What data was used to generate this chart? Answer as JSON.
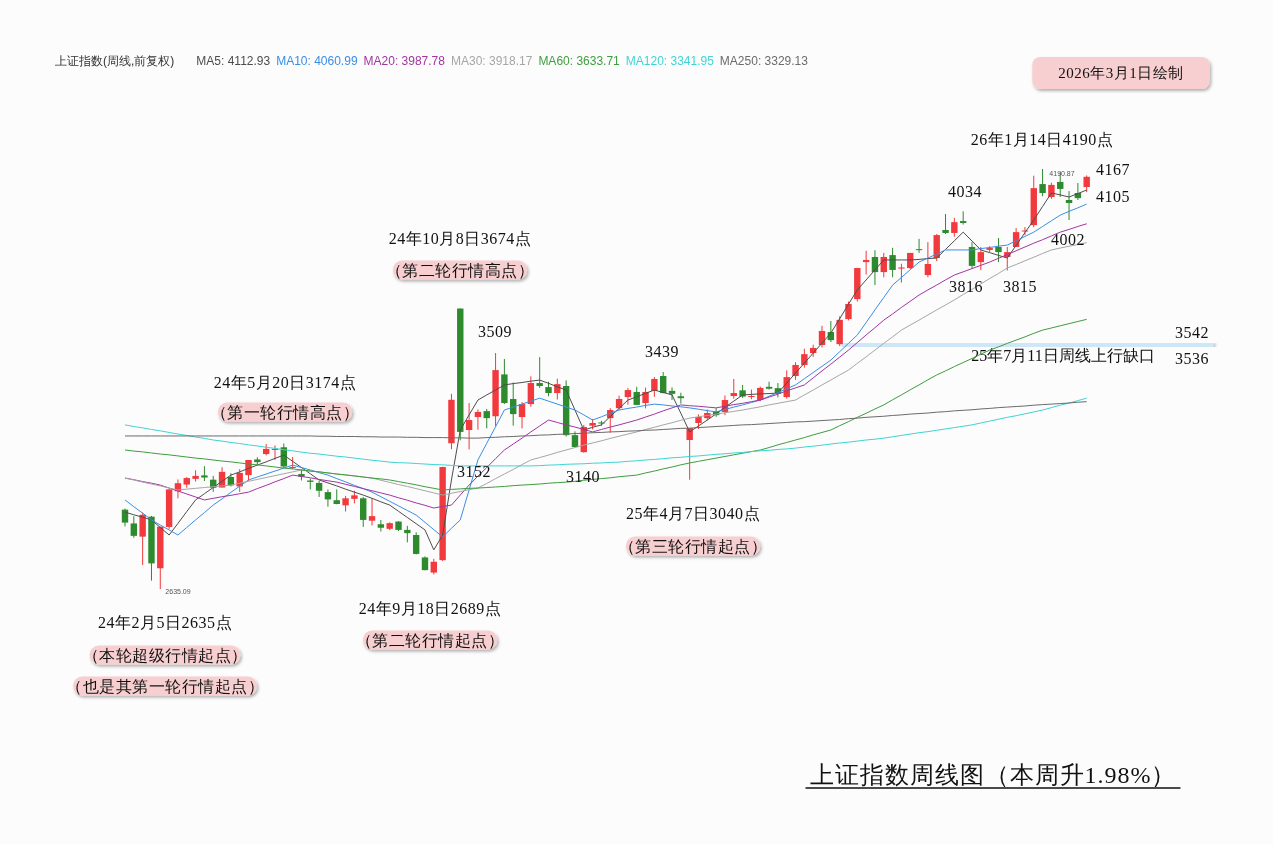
{
  "chart_data": {
    "type": "candlestick",
    "title": "上证指数周线图（本周升1.98%）",
    "legend_title": "上证指数(周线,前复权)",
    "legend": "top",
    "categories": [
      null,
      null,
      null,
      null,
      null,
      null,
      null,
      null,
      null,
      null,
      null,
      null,
      null,
      null,
      null,
      null,
      null,
      null,
      null,
      null,
      null,
      null,
      null,
      null,
      null,
      null,
      null,
      null,
      null,
      null,
      null,
      null,
      null,
      null,
      null,
      null,
      null,
      null,
      null,
      null,
      null,
      null,
      null,
      null,
      null,
      null,
      null,
      null,
      null,
      null,
      null,
      null,
      null,
      null,
      null,
      null,
      null,
      null,
      null,
      null,
      null,
      null,
      null,
      null,
      null,
      null,
      null,
      null,
      null,
      null,
      null,
      null,
      null,
      null,
      null,
      null,
      null,
      null,
      null,
      null,
      null,
      null,
      null,
      null,
      null,
      null,
      null,
      null,
      null,
      null,
      null,
      null,
      null,
      null,
      null,
      null,
      null,
      null,
      null,
      null,
      null,
      null,
      null,
      null,
      null,
      null,
      null,
      null,
      null,
      null
    ],
    "ohlc": [
      [
        2929,
        2933,
        2867,
        2881
      ],
      [
        2878,
        2905,
        2825,
        2832
      ],
      [
        2829,
        2918,
        2724,
        2910
      ],
      [
        2903,
        2906,
        2666,
        2730
      ],
      [
        2712,
        2866,
        2635.09,
        2866
      ],
      [
        2865,
        3004,
        2858,
        3004
      ],
      [
        2997,
        3041,
        2971,
        3027
      ],
      [
        3022,
        3050,
        3010,
        3046
      ],
      [
        3043,
        3075,
        3033,
        3054
      ],
      [
        3056,
        3090,
        3035,
        3048
      ],
      [
        3040,
        3054,
        2995,
        3010
      ],
      [
        3011,
        3086,
        3011,
        3069
      ],
      [
        3050,
        3064,
        3015,
        3019
      ],
      [
        3015,
        3079,
        2995,
        3065
      ],
      [
        3057,
        3113,
        3036,
        3113
      ],
      [
        3115,
        3123,
        3095,
        3105
      ],
      [
        3135,
        3172,
        3130,
        3154
      ],
      [
        3150,
        3167,
        3113,
        3154
      ],
      [
        3160,
        3174,
        3084,
        3089
      ],
      [
        3086,
        3124,
        3079,
        3087
      ],
      [
        3061,
        3078,
        3037,
        3051
      ],
      [
        3037,
        3044,
        3004,
        3032
      ],
      [
        3028,
        3036,
        2976,
        2999
      ],
      [
        2994,
        3004,
        2940,
        2967
      ],
      [
        2964,
        3004,
        2949,
        2950
      ],
      [
        2945,
        2980,
        2922,
        2971
      ],
      [
        2969,
        2999,
        2952,
        2982
      ],
      [
        2971,
        2976,
        2865,
        2891
      ],
      [
        2888,
        2971,
        2870,
        2905
      ],
      [
        2875,
        2891,
        2848,
        2862
      ],
      [
        2858,
        2882,
        2853,
        2879
      ],
      [
        2885,
        2886,
        2850,
        2854
      ],
      [
        2854,
        2869,
        2808,
        2842
      ],
      [
        2835,
        2845,
        2763,
        2765
      ],
      [
        2752,
        2756,
        2704,
        2705
      ],
      [
        2696,
        2747,
        2689,
        2736
      ],
      [
        2742,
        3088,
        2739,
        3087
      ],
      [
        3175,
        3358,
        3153,
        3336
      ],
      [
        3674,
        3674,
        3186,
        3217
      ],
      [
        3224,
        3324,
        3152,
        3261
      ],
      [
        3272,
        3300,
        3225,
        3291
      ],
      [
        3294,
        3302,
        3230,
        3268
      ],
      [
        3275,
        3509,
        3238,
        3446
      ],
      [
        3430,
        3487,
        3320,
        3324
      ],
      [
        3339,
        3400,
        3240,
        3283
      ],
      [
        3272,
        3327,
        3230,
        3320
      ],
      [
        3320,
        3423,
        3310,
        3398
      ],
      [
        3398,
        3494,
        3380,
        3387
      ],
      [
        3383,
        3403,
        3349,
        3361
      ],
      [
        3361,
        3414,
        3337,
        3394
      ],
      [
        3387,
        3408,
        3200,
        3205
      ],
      [
        3205,
        3219,
        3160,
        3161
      ],
      [
        3142,
        3243,
        3140,
        3235
      ],
      [
        3240,
        3265,
        3226,
        3250
      ],
      [
        3252,
        3258,
        3240,
        3250
      ],
      [
        3268,
        3305,
        3214,
        3298
      ],
      [
        3305,
        3351,
        3300,
        3339
      ],
      [
        3346,
        3380,
        3318,
        3372
      ],
      [
        3365,
        3384,
        3316,
        3317
      ],
      [
        3324,
        3381,
        3304,
        3365
      ],
      [
        3369,
        3420,
        3347,
        3413
      ],
      [
        3424,
        3439,
        3360,
        3361
      ],
      [
        3369,
        3382,
        3335,
        3358
      ],
      [
        3349,
        3362,
        3322,
        3342
      ],
      [
        3187,
        3231,
        3040,
        3231
      ],
      [
        3250,
        3282,
        3228,
        3272
      ],
      [
        3268,
        3300,
        3260,
        3287
      ],
      [
        3293,
        3305,
        3273,
        3279
      ],
      [
        3291,
        3352,
        3279,
        3335
      ],
      [
        3350,
        3413,
        3340,
        3361
      ],
      [
        3371,
        3391,
        3343,
        3348
      ],
      [
        3347,
        3374,
        3338,
        3350
      ],
      [
        3335,
        3385,
        3330,
        3380
      ],
      [
        3384,
        3403,
        3374,
        3377
      ],
      [
        3379,
        3398,
        3345,
        3359
      ],
      [
        3346,
        3445,
        3340,
        3420
      ],
      [
        3424,
        3475,
        3410,
        3465
      ],
      [
        3465,
        3525,
        3455,
        3505
      ],
      [
        3509,
        3540,
        3495,
        3528
      ],
      [
        3539,
        3610,
        3530,
        3591
      ],
      [
        3587,
        3628,
        3550,
        3557
      ],
      [
        3542,
        3645,
        3535,
        3632
      ],
      [
        3635,
        3700,
        3630,
        3691
      ],
      [
        3709,
        3825,
        3700,
        3824
      ],
      [
        3846,
        3888,
        3800,
        3854
      ],
      [
        3865,
        3890,
        3761,
        3809
      ],
      [
        3809,
        3880,
        3790,
        3865
      ],
      [
        3872,
        3899,
        3790,
        3817
      ],
      [
        3822,
        3840,
        3770,
        3826
      ],
      [
        3824,
        3880,
        3820,
        3880
      ],
      [
        3894,
        3932,
        3880,
        3892
      ],
      [
        3798,
        3920,
        3790,
        3839
      ],
      [
        3861,
        3950,
        3850,
        3946
      ],
      [
        3965,
        4024,
        3950,
        3954
      ],
      [
        3954,
        4010,
        3940,
        3994
      ],
      [
        3998,
        4034,
        3985,
        3991
      ],
      [
        3902,
        3920,
        3822,
        3832
      ],
      [
        3846,
        3902,
        3816,
        3883
      ],
      [
        3891,
        3905,
        3883,
        3898
      ],
      [
        3902,
        3935,
        3846,
        3883
      ],
      [
        3865,
        3902,
        3815,
        3883
      ],
      [
        3902,
        3972,
        3902,
        3957
      ],
      [
        3960,
        3976,
        3946,
        3963
      ],
      [
        3983,
        4166,
        3975,
        4120
      ],
      [
        4135,
        4190.87,
        4090,
        4102
      ],
      [
        4087,
        4140,
        4080,
        4132
      ],
      [
        4143,
        4180,
        4087,
        4117
      ],
      [
        4076,
        4109,
        4002,
        4065
      ],
      [
        4102,
        4139,
        4076,
        4083
      ],
      [
        4124,
        4167,
        4105,
        4162
      ]
    ],
    "colors": [
      "#2d8a2d",
      "#2d8a2d",
      "#f2393d",
      "#2d8a2d",
      "#f2393d",
      "#f2393d",
      "#f2393d",
      "#f2393d",
      "#f2393d",
      "#2d8a2d",
      "#2d8a2d",
      "#f2393d",
      "#2d8a2d",
      "#f2393d",
      "#f2393d",
      "#2d8a2d",
      "#f2393d",
      "#f2393d",
      "#2d8a2d",
      "#f2393d",
      "#2d8a2d",
      "#2d8a2d",
      "#2d8a2d",
      "#2d8a2d",
      "#2d8a2d",
      "#f2393d",
      "#f2393d",
      "#2d8a2d",
      "#f2393d",
      "#2d8a2d",
      "#f2393d",
      "#2d8a2d",
      "#2d8a2d",
      "#2d8a2d",
      "#2d8a2d",
      "#f2393d",
      "#f2393d",
      "#f2393d",
      "#2d8a2d",
      "#f2393d",
      "#f2393d",
      "#2d8a2d",
      "#f2393d",
      "#2d8a2d",
      "#2d8a2d",
      "#f2393d",
      "#f2393d",
      "#2d8a2d",
      "#2d8a2d",
      "#f2393d",
      "#2d8a2d",
      "#2d8a2d",
      "#f2393d",
      "#f2393d",
      "#2d8a2d",
      "#f2393d",
      "#f2393d",
      "#f2393d",
      "#2d8a2d",
      "#f2393d",
      "#f2393d",
      "#2d8a2d",
      "#2d8a2d",
      "#2d8a2d",
      "#f2393d",
      "#f2393d",
      "#f2393d",
      "#2d8a2d",
      "#f2393d",
      "#f2393d",
      "#2d8a2d",
      "#f2393d",
      "#f2393d",
      "#2d8a2d",
      "#2d8a2d",
      "#f2393d",
      "#f2393d",
      "#f2393d",
      "#f2393d",
      "#f2393d",
      "#2d8a2d",
      "#f2393d",
      "#f2393d",
      "#f2393d",
      "#f2393d",
      "#2d8a2d",
      "#f2393d",
      "#2d8a2d",
      "#f2393d",
      "#f2393d",
      "#2d8a2d",
      "#f2393d",
      "#f2393d",
      "#2d8a2d",
      "#f2393d",
      "#2d8a2d",
      "#2d8a2d",
      "#f2393d",
      "#f2393d",
      "#2d8a2d",
      "#f2393d",
      "#f2393d",
      "#f2393d",
      "#f2393d",
      "#2d8a2d",
      "#f2393d",
      "#2d8a2d",
      "#2d8a2d",
      "#2d8a2d",
      "#f2393d"
    ],
    "series": [
      {
        "type": "line",
        "name": "MA5: 4112.93",
        "color": "#4d4d4d",
        "values": [
          2920,
          2910,
          2901,
          2891,
          2863,
          2835,
          2878,
          2922,
          2965,
          2988,
          3011,
          3034,
          3057,
          3069,
          3082,
          3094,
          3106,
          3119,
          3131,
          3108,
          3085,
          3062,
          3039,
          3028,
          3017,
          3005,
          2994,
          2983,
          2971,
          2958,
          2946,
          2923,
          2900,
          2877,
          2854,
          2780,
          2835,
          3039,
          3224,
          3280,
          3335,
          3354,
          3372,
          3391,
          3396,
          3400,
          3405,
          3409,
          3397,
          3384,
          3372,
          3298,
          3224,
          3234,
          3243,
          3274,
          3304,
          3335,
          3347,
          3360,
          3372,
          3363,
          3354,
          3286,
          3217,
          3239,
          3261,
          3284,
          3308,
          3331,
          3354,
          3356,
          3358,
          3359,
          3361,
          3398,
          3435,
          3472,
          3509,
          3546,
          3583,
          3636,
          3690,
          3743,
          3780,
          3817,
          3854,
          3854,
          3854,
          3854,
          3856,
          3859,
          3861,
          3893,
          3925,
          3957,
          3924,
          3891,
          3881,
          3871,
          3861,
          3908,
          3955,
          4002,
          4052,
          4102,
          4095,
          4087,
          4100,
          4113
        ]
      },
      {
        "type": "line",
        "name": "MA10: 4060.99",
        "color": "#3a8ee6",
        "values": [
          2965,
          2940,
          2916,
          2891,
          2872,
          2854,
          2835,
          2863,
          2891,
          2918,
          2946,
          2969,
          2993,
          3016,
          3039,
          3050,
          3061,
          3072,
          3083,
          3094,
          3085,
          3076,
          3066,
          3057,
          3044,
          3032,
          3019,
          3007,
          2994,
          2977,
          2960,
          2943,
          2926,
          2909,
          2882,
          2855,
          2828,
          2860,
          2891,
          3002,
          3113,
          3175,
          3236,
          3298,
          3309,
          3320,
          3331,
          3342,
          3331,
          3320,
          3309,
          3298,
          3280,
          3261,
          3273,
          3286,
          3298,
          3304,
          3309,
          3315,
          3320,
          3317,
          3313,
          3310,
          3306,
          3301,
          3296,
          3291,
          3300,
          3309,
          3317,
          3326,
          3335,
          3349,
          3363,
          3377,
          3391,
          3414,
          3437,
          3460,
          3483,
          3514,
          3545,
          3576,
          3622,
          3669,
          3715,
          3761,
          3789,
          3818,
          3846,
          3861,
          3876,
          3891,
          3891,
          3891,
          3891,
          3896,
          3900,
          3905,
          3909,
          3925,
          3941,
          3957,
          3978,
          3999,
          4020,
          4034,
          4047,
          4061
        ]
      },
      {
        "type": "line",
        "name": "MA20: 3987.78",
        "color": "#a235a2",
        "values": [
          3046,
          3040,
          3033,
          3027,
          3020,
          3009,
          2998,
          2987,
          2976,
          2965,
          2971,
          2977,
          2982,
          2988,
          2994,
          3007,
          3019,
          3032,
          3044,
          3057,
          3052,
          3047,
          3041,
          3036,
          3031,
          3023,
          3015,
          3007,
          2999,
          2991,
          2983,
          2973,
          2964,
          2954,
          2945,
          2935,
          2941,
          2946,
          2983,
          3020,
          3053,
          3085,
          3118,
          3150,
          3172,
          3194,
          3217,
          3239,
          3261,
          3252,
          3243,
          3235,
          3226,
          3217,
          3226,
          3235,
          3243,
          3252,
          3261,
          3272,
          3283,
          3295,
          3306,
          3317,
          3314,
          3312,
          3309,
          3306,
          3312,
          3318,
          3323,
          3329,
          3335,
          3346,
          3357,
          3369,
          3380,
          3391,
          3417,
          3443,
          3468,
          3494,
          3520,
          3548,
          3576,
          3603,
          3631,
          3654,
          3678,
          3701,
          3724,
          3743,
          3761,
          3780,
          3798,
          3810,
          3822,
          3834,
          3846,
          3860,
          3874,
          3888,
          3902,
          3916,
          3929,
          3943,
          3957,
          3967,
          3978,
          3988
        ]
      },
      {
        "type": "line",
        "name": "MA30: 3918.17",
        "color": "#a6a6a6",
        "values": [
          3046,
          3039,
          3031,
          3024,
          3017,
          3009,
          3002,
          3005,
          3008,
          3011,
          3014,
          3017,
          3020,
          3027,
          3034,
          3041,
          3048,
          3055,
          3062,
          3069,
          3076,
          3072,
          3069,
          3065,
          3061,
          3057,
          3054,
          3050,
          3046,
          3038,
          3030,
          3022,
          3015,
          3007,
          2999,
          2991,
          2983,
          2990,
          2996,
          3003,
          3009,
          3026,
          3044,
          3061,
          3078,
          3096,
          3113,
          3122,
          3131,
          3141,
          3150,
          3159,
          3168,
          3176,
          3184,
          3193,
          3201,
          3209,
          3217,
          3226,
          3234,
          3243,
          3251,
          3260,
          3268,
          3273,
          3278,
          3283,
          3288,
          3293,
          3298,
          3304,
          3310,
          3317,
          3323,
          3329,
          3335,
          3354,
          3372,
          3391,
          3409,
          3428,
          3446,
          3471,
          3495,
          3520,
          3545,
          3569,
          3594,
          3613,
          3631,
          3650,
          3669,
          3687,
          3706,
          3726,
          3745,
          3765,
          3785,
          3804,
          3824,
          3837,
          3851,
          3864,
          3878,
          3891,
          3898,
          3905,
          3911,
          3918
        ]
      },
      {
        "type": "line",
        "name": "MA60: 3633.71",
        "color": "#3e9e3e",
        "values": [
          3150,
          3146,
          3143,
          3139,
          3135,
          3132,
          3128,
          3124,
          3120,
          3117,
          3113,
          3109,
          3106,
          3102,
          3098,
          3095,
          3091,
          3087,
          3083,
          3080,
          3076,
          3072,
          3069,
          3065,
          3061,
          3058,
          3054,
          3050,
          3046,
          3043,
          3039,
          3033,
          3027,
          3021,
          3014,
          3008,
          3002,
          3004,
          3006,
          3008,
          3009,
          3011,
          3013,
          3015,
          3018,
          3020,
          3022,
          3024,
          3027,
          3029,
          3031,
          3034,
          3038,
          3041,
          3044,
          3047,
          3051,
          3054,
          3057,
          3065,
          3072,
          3080,
          3087,
          3095,
          3102,
          3108,
          3114,
          3120,
          3126,
          3132,
          3138,
          3144,
          3150,
          3159,
          3169,
          3178,
          3187,
          3196,
          3206,
          3215,
          3224,
          3240,
          3255,
          3271,
          3286,
          3302,
          3317,
          3336,
          3354,
          3373,
          3391,
          3410,
          3428,
          3443,
          3459,
          3474,
          3489,
          3505,
          3520,
          3532,
          3545,
          3557,
          3569,
          3582,
          3594,
          3602,
          3610,
          3618,
          3626,
          3634
        ]
      },
      {
        "type": "line",
        "name": "MA120: 3341.95",
        "color": "#3fd4d4",
        "values": [
          3243,
          3237,
          3232,
          3226,
          3221,
          3215,
          3209,
          3204,
          3198,
          3193,
          3187,
          3183,
          3178,
          3174,
          3169,
          3165,
          3160,
          3156,
          3151,
          3147,
          3142,
          3138,
          3135,
          3131,
          3127,
          3124,
          3120,
          3116,
          3112,
          3109,
          3105,
          3103,
          3102,
          3100,
          3098,
          3096,
          3095,
          3093,
          3091,
          3091,
          3091,
          3091,
          3091,
          3091,
          3091,
          3091,
          3091,
          3092,
          3094,
          3095,
          3097,
          3098,
          3099,
          3101,
          3102,
          3104,
          3105,
          3108,
          3110,
          3113,
          3115,
          3118,
          3121,
          3123,
          3126,
          3128,
          3131,
          3134,
          3136,
          3139,
          3141,
          3144,
          3147,
          3149,
          3152,
          3154,
          3157,
          3161,
          3164,
          3168,
          3172,
          3176,
          3179,
          3183,
          3187,
          3190,
          3194,
          3199,
          3204,
          3209,
          3214,
          3218,
          3223,
          3228,
          3233,
          3238,
          3243,
          3250,
          3257,
          3264,
          3271,
          3277,
          3284,
          3291,
          3298,
          3307,
          3316,
          3324,
          3333,
          3342
        ]
      },
      {
        "type": "line",
        "name": "MA250: 3329.13",
        "color": "#6b6b6b",
        "values": [
          3202,
          3202,
          3202,
          3202,
          3202,
          3202,
          3202,
          3202,
          3202,
          3202,
          3202,
          3202,
          3202,
          3202,
          3202,
          3202,
          3202,
          3202,
          3202,
          3202,
          3202,
          3202,
          3201,
          3201,
          3200,
          3200,
          3200,
          3199,
          3199,
          3198,
          3198,
          3198,
          3197,
          3197,
          3196,
          3196,
          3196,
          3195,
          3195,
          3194,
          3194,
          3196,
          3197,
          3199,
          3200,
          3202,
          3203,
          3205,
          3206,
          3208,
          3209,
          3211,
          3212,
          3214,
          3215,
          3217,
          3218,
          3220,
          3221,
          3223,
          3224,
          3226,
          3228,
          3230,
          3231,
          3233,
          3235,
          3237,
          3239,
          3241,
          3243,
          3244,
          3246,
          3248,
          3250,
          3252,
          3254,
          3255,
          3257,
          3259,
          3261,
          3263,
          3266,
          3268,
          3271,
          3273,
          3275,
          3278,
          3280,
          3283,
          3285,
          3287,
          3290,
          3292,
          3295,
          3297,
          3299,
          3302,
          3304,
          3307,
          3309,
          3311,
          3313,
          3316,
          3318,
          3320,
          3322,
          3324,
          3327,
          3329
        ]
      }
    ],
    "bands": [
      {
        "axis": "y",
        "from": 3536,
        "to": 3542,
        "label": "25年7月11日周线上行缺口",
        "color": "#cde6f8"
      }
    ],
    "annotations": [
      {
        "text": "24年2月5日2635点",
        "y": 2635
      },
      "（本轮超级行情起点）",
      "（也是其第一轮行情起点）",
      "24年5月20日3174点",
      "（第一轮行情高点）",
      {
        "text": "24年9月18日2689点",
        "y": 2689
      },
      "（第二轮行情起点）",
      "24年10月8日3674点",
      "（第二轮行情高点）",
      {
        "text": "3509",
        "y": 3509
      },
      {
        "text": "3152",
        "y": 3152
      },
      {
        "text": "3140",
        "y": 3140
      },
      {
        "text": "3439",
        "y": 3439
      },
      {
        "text": "25年4月7日3040点",
        "y": 3040
      },
      "（第三轮行情起点）",
      {
        "text": "4034",
        "y": 4034
      },
      {
        "text": "3816",
        "y": 3816
      },
      "3815",
      {
        "text": "26年1月14日4190点",
        "y": 4190
      },
      "4167",
      "4105",
      {
        "text": "4002",
        "y": 4002
      },
      {
        "text": "4190.87",
        "y": 4190.87
      },
      "2635.09",
      "2026年3月1日绘制",
      {
        "text": "3542",
        "y": 3542
      },
      {
        "text": "3536",
        "y": 3536
      }
    ]
  }
}
